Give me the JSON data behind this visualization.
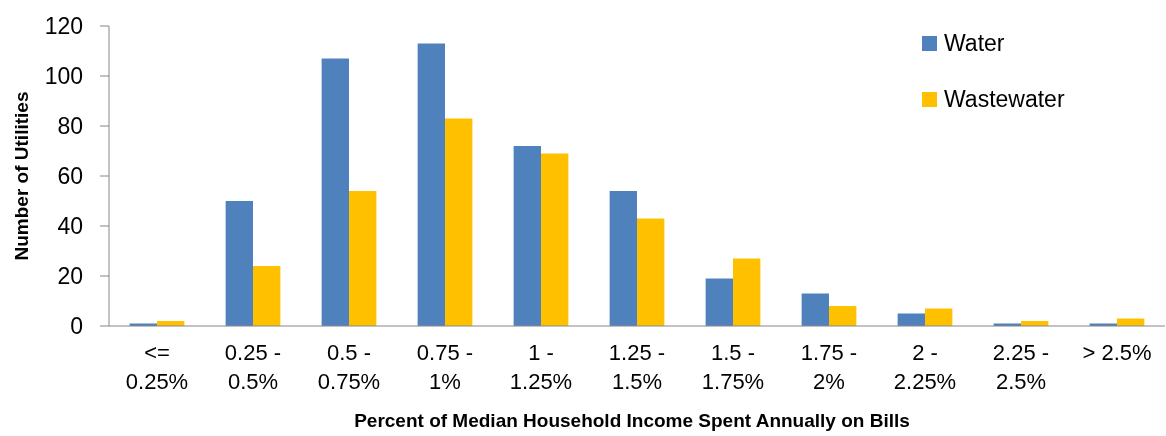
{
  "chart_data": {
    "type": "bar",
    "xlabel": "Percent of Median Household Income Spent Annually on Bills",
    "ylabel": "Number of Utilities",
    "categories": [
      "<= 0.25%",
      "0.25 - 0.5%",
      "0.5 - 0.75%",
      "0.75 - 1%",
      "1 - 1.25%",
      "1.25 - 1.5%",
      "1.5 - 1.75%",
      "1.75 - 2%",
      "2 - 2.25%",
      "2.25 - 2.5%",
      "> 2.5%"
    ],
    "series": [
      {
        "name": "Water",
        "color": "#4f81bd",
        "values": [
          1,
          50,
          107,
          113,
          72,
          54,
          19,
          13,
          5,
          1,
          1
        ]
      },
      {
        "name": "Wastewater",
        "color": "#ffc000",
        "values": [
          2,
          24,
          54,
          83,
          69,
          43,
          27,
          8,
          7,
          2,
          3
        ]
      }
    ],
    "ylim": [
      0,
      120
    ],
    "yticks": [
      0,
      20,
      40,
      60,
      80,
      100,
      120
    ],
    "grid": false,
    "legend": "top right"
  }
}
